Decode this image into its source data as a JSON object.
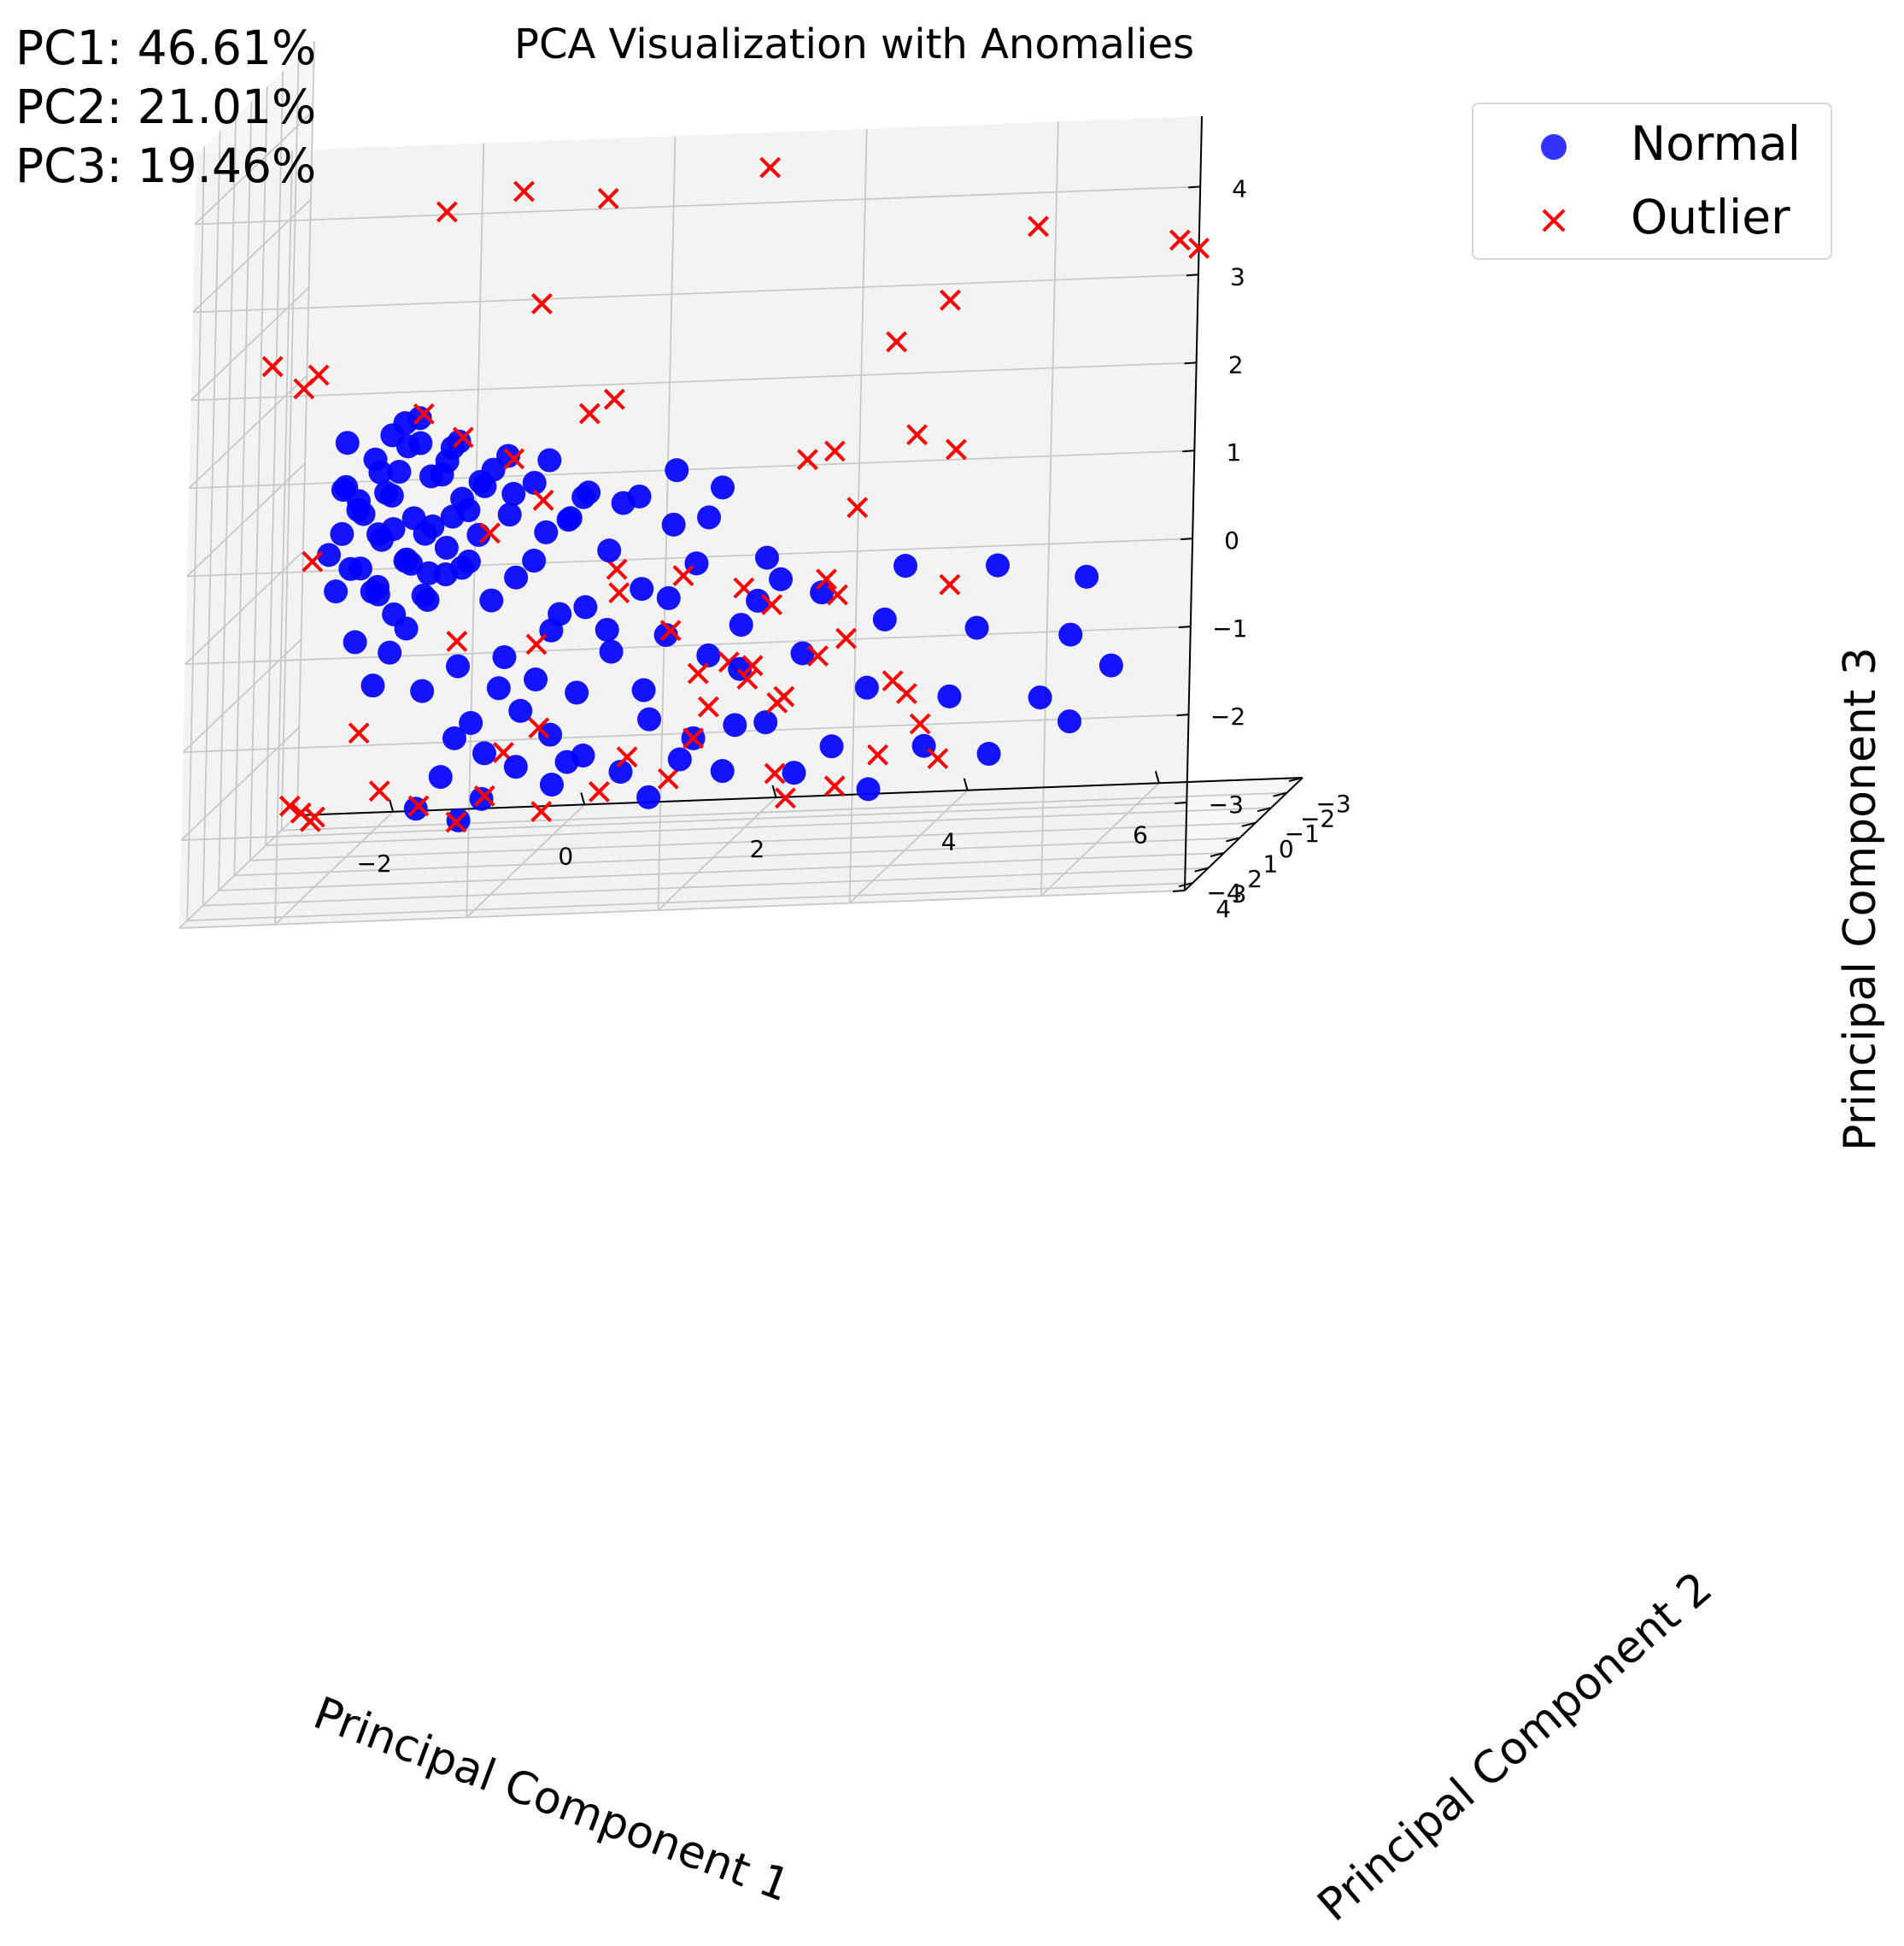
{
  "variance": [
    "PC1: 46.61%",
    "PC2: 21.01%",
    "PC3: 19.46%"
  ],
  "chart_data": {
    "type": "scatter",
    "title": "PCA Visualization with Anomalies",
    "xlabel": "Principal Component 1",
    "ylabel": "Principal Component 2",
    "zlabel": "Principal Component 3",
    "xlim": [
      -3,
      7.5
    ],
    "ylim": [
      -3,
      4.5
    ],
    "zlim": [
      -4,
      4.8
    ],
    "xticks": [
      -2,
      0,
      2,
      4,
      6
    ],
    "yticks": [
      -3,
      -2,
      -1,
      0,
      1,
      2,
      3,
      4
    ],
    "zticks": [
      -4,
      -3,
      -2,
      -1,
      0,
      1,
      2,
      3,
      4
    ],
    "tick_labels": {
      "x": [
        "−2",
        "0",
        "2",
        "4",
        "6"
      ],
      "y": [
        "−3",
        "−2",
        "−1",
        "0",
        "1",
        "2",
        "3",
        "4"
      ],
      "z": [
        "−4",
        "−3",
        "−2",
        "−1",
        "0",
        "1",
        "2",
        "3",
        "4"
      ]
    },
    "grid": true,
    "legend_position": "top-right",
    "series": [
      {
        "name": "Normal",
        "marker": "circle",
        "color": "#0000ff",
        "points": [
          [
            -1.6,
            3.2,
            0.2
          ],
          [
            -1.4,
            3.4,
            0.6
          ],
          [
            -1.2,
            3.1,
            0.1
          ],
          [
            -1.5,
            2.8,
            0.4
          ],
          [
            -1.0,
            3.3,
            0.9
          ],
          [
            -0.9,
            2.9,
            0.3
          ],
          [
            -1.3,
            3.0,
            1.0
          ],
          [
            -1.1,
            3.5,
            0.7
          ],
          [
            -0.8,
            3.2,
            1.2
          ],
          [
            -1.6,
            2.6,
            -0.3
          ],
          [
            -1.2,
            2.5,
            0.5
          ],
          [
            -0.7,
            3.4,
            0.2
          ],
          [
            -1.4,
            2.4,
            -0.6
          ],
          [
            -1.0,
            2.7,
            -0.2
          ],
          [
            -0.6,
            3.0,
            0.8
          ],
          [
            -1.5,
            3.6,
            1.3
          ],
          [
            -0.9,
            3.6,
            1.5
          ],
          [
            -0.5,
            3.3,
            1.0
          ],
          [
            -1.2,
            2.2,
            -0.9
          ],
          [
            -1.6,
            2.2,
            -1.2
          ],
          [
            -0.8,
            2.3,
            0.1
          ],
          [
            -0.4,
            2.9,
            0.5
          ],
          [
            -1.3,
            1.8,
            -1.4
          ],
          [
            -0.9,
            1.9,
            -0.8
          ],
          [
            -1.5,
            1.6,
            -1.8
          ],
          [
            -1.7,
            2.9,
            -0.5
          ],
          [
            -0.6,
            2.6,
            -0.1
          ],
          [
            -1.0,
            3.8,
            1.4
          ],
          [
            -0.7,
            3.9,
            1.6
          ],
          [
            -0.4,
            3.6,
            1.2
          ],
          [
            -0.3,
            3.1,
            0.4
          ],
          [
            -1.1,
            2.0,
            -1.1
          ],
          [
            -0.5,
            2.2,
            -0.4
          ],
          [
            -0.2,
            2.7,
            0.6
          ],
          [
            -1.4,
            3.2,
            -0.2
          ],
          [
            -0.8,
            2.8,
            -0.6
          ],
          [
            -0.9,
            3.4,
            -0.1
          ],
          [
            -0.3,
            3.8,
            1.3
          ],
          [
            0.0,
            3.4,
            0.9
          ],
          [
            -0.6,
            1.7,
            -1.6
          ],
          [
            -1.0,
            1.5,
            -1.9
          ],
          [
            -0.2,
            2.1,
            -0.8
          ],
          [
            0.1,
            2.9,
            0.3
          ],
          [
            -0.5,
            1.4,
            -2.3
          ],
          [
            -0.1,
            1.8,
            -1.5
          ],
          [
            0.3,
            2.5,
            -0.3
          ],
          [
            0.4,
            3.2,
            0.7
          ],
          [
            0.2,
            3.7,
            1.1
          ],
          [
            -0.4,
            1.1,
            -2.7
          ],
          [
            0.0,
            1.3,
            -2.2
          ],
          [
            0.4,
            1.9,
            -1.2
          ],
          [
            0.7,
            2.8,
            0.2
          ],
          [
            0.6,
            3.5,
            1.0
          ],
          [
            0.9,
            3.1,
            0.5
          ],
          [
            -0.9,
            0.8,
            -3.0
          ],
          [
            -0.5,
            0.6,
            -3.3
          ],
          [
            -0.1,
            0.9,
            -2.9
          ],
          [
            0.3,
            1.2,
            -2.5
          ],
          [
            0.8,
            2.2,
            -0.9
          ],
          [
            1.1,
            2.6,
            -0.2
          ],
          [
            1.0,
            3.4,
            0.6
          ],
          [
            1.3,
            3.0,
            0.4
          ],
          [
            -1.2,
            0.5,
            -3.4
          ],
          [
            -0.8,
            0.2,
            -3.6
          ],
          [
            0.2,
            0.4,
            -3.2
          ],
          [
            0.6,
            0.9,
            -2.8
          ],
          [
            1.0,
            1.7,
            -1.5
          ],
          [
            1.4,
            2.3,
            -0.7
          ],
          [
            1.5,
            3.2,
            0.5
          ],
          [
            1.8,
            2.8,
            0.1
          ],
          [
            0.9,
            0.3,
            -3.1
          ],
          [
            1.3,
            1.0,
            -2.4
          ],
          [
            1.6,
            1.9,
            -1.3
          ],
          [
            2.0,
            2.5,
            -0.4
          ],
          [
            2.2,
            3.0,
            0.2
          ],
          [
            1.1,
            -0.3,
            -3.5
          ],
          [
            1.7,
            0.6,
            -2.7
          ],
          [
            2.3,
            1.4,
            -1.8
          ],
          [
            2.6,
            2.2,
            -0.9
          ],
          [
            2.8,
            2.9,
            -0.3
          ],
          [
            1.9,
            -0.1,
            -3.2
          ],
          [
            2.5,
            0.9,
            -2.5
          ],
          [
            3.0,
            1.7,
            -1.6
          ],
          [
            3.3,
            2.4,
            -0.8
          ],
          [
            2.6,
            -0.4,
            -3.3
          ],
          [
            3.1,
            0.3,
            -2.9
          ],
          [
            3.6,
            1.2,
            -2.1
          ],
          [
            3.9,
            2.0,
            -1.2
          ],
          [
            4.2,
            2.6,
            -0.5
          ],
          [
            3.3,
            -0.9,
            -3.6
          ],
          [
            4.0,
            -0.1,
            -3.0
          ],
          [
            4.4,
            0.8,
            -2.3
          ],
          [
            4.8,
            1.6,
            -1.4
          ],
          [
            5.1,
            2.2,
            -0.6
          ],
          [
            4.6,
            -0.6,
            -3.2
          ],
          [
            5.3,
            0.5,
            -2.4
          ],
          [
            5.7,
            1.1,
            -1.6
          ],
          [
            6.0,
            2.0,
            -0.8
          ],
          [
            5.5,
            -0.2,
            -2.8
          ],
          [
            6.1,
            0.9,
            -2.0
          ],
          [
            -1.3,
            3.7,
            0.5
          ],
          [
            -1.1,
            3.9,
            1.0
          ],
          [
            -0.8,
            4.0,
            1.3
          ],
          [
            -1.5,
            3.8,
            0.8
          ],
          [
            -0.6,
            3.7,
            0.9
          ],
          [
            -1.0,
            3.6,
            0.3
          ],
          [
            -1.2,
            3.3,
            -0.4
          ],
          [
            -0.7,
            3.1,
            -0.3
          ],
          [
            -0.4,
            3.5,
            0.4
          ],
          [
            -0.1,
            3.6,
            0.8
          ],
          [
            0.2,
            3.3,
            0.6
          ],
          [
            -0.3,
            3.0,
            -0.2
          ],
          [
            0.5,
            3.0,
            0.1
          ],
          [
            0.8,
            3.3,
            0.3
          ],
          [
            -1.7,
            3.4,
            0.0
          ],
          [
            -1.6,
            3.0,
            0.7
          ],
          [
            -1.3,
            2.7,
            0.1
          ],
          [
            -1.0,
            2.4,
            -0.3
          ],
          [
            -1.4,
            2.0,
            -0.7
          ],
          [
            -0.7,
            2.0,
            -0.5
          ],
          [
            -0.3,
            2.4,
            0.0
          ],
          [
            0.1,
            2.4,
            -0.5
          ],
          [
            0.5,
            2.0,
            -1.0
          ],
          [
            0.2,
            1.6,
            -1.8
          ],
          [
            -0.2,
            1.5,
            -1.9
          ],
          [
            -0.7,
            1.2,
            -2.5
          ],
          [
            0.6,
            1.4,
            -2.0
          ],
          [
            1.0,
            2.0,
            -1.2
          ],
          [
            1.3,
            1.4,
            -2.0
          ],
          [
            1.7,
            2.4,
            -0.8
          ],
          [
            0.4,
            0.7,
            -2.9
          ],
          [
            1.5,
            0.2,
            -3.0
          ],
          [
            2.1,
            0.4,
            -2.6
          ],
          [
            2.0,
            1.6,
            -1.6
          ],
          [
            2.4,
            2.0,
            -1.2
          ],
          [
            2.9,
            2.6,
            -0.6
          ],
          [
            1.9,
            3.3,
            0.8
          ],
          [
            2.4,
            3.4,
            0.6
          ]
        ]
      },
      {
        "name": "Outlier",
        "marker": "x",
        "color": "#ff0000",
        "points": [
          [
            -0.4,
            4.3,
            4.0
          ],
          [
            0.4,
            4.3,
            4.2
          ],
          [
            1.3,
            4.4,
            4.1
          ],
          [
            3.0,
            4.5,
            4.4
          ],
          [
            5.8,
            4.4,
            3.6
          ],
          [
            7.3,
            4.5,
            3.4
          ],
          [
            7.5,
            4.5,
            3.3
          ],
          [
            -2.3,
            3.6,
            2.2
          ],
          [
            -1.8,
            3.7,
            2.1
          ],
          [
            -2.0,
            3.4,
            1.9
          ],
          [
            0.5,
            3.6,
            2.8
          ],
          [
            4.5,
            3.9,
            1.2
          ],
          [
            4.2,
            3.5,
            2.2
          ],
          [
            4.8,
            3.8,
            2.7
          ],
          [
            -0.9,
            2.4,
            1.4
          ],
          [
            -0.5,
            2.3,
            1.1
          ],
          [
            0.1,
            2.7,
            0.9
          ],
          [
            0.4,
            2.6,
            0.4
          ],
          [
            0.8,
            2.2,
            1.3
          ],
          [
            1.2,
            3.1,
            1.6
          ],
          [
            -0.2,
            2.3,
            0.0
          ],
          [
            3.5,
            3.0,
            0.9
          ],
          [
            3.2,
            2.9,
            0.8
          ],
          [
            3.7,
            2.7,
            0.2
          ],
          [
            4.8,
            3.2,
            0.9
          ],
          [
            2.5,
            2.5,
            -0.7
          ],
          [
            2.7,
            1.9,
            -1.0
          ],
          [
            3.2,
            1.5,
            -0.8
          ],
          [
            3.4,
            2.0,
            -0.9
          ],
          [
            1.2,
            2.7,
            -0.4
          ],
          [
            1.8,
            2.1,
            -0.6
          ],
          [
            1.1,
            1.9,
            -0.8
          ],
          [
            1.6,
            1.6,
            -1.3
          ],
          [
            2.2,
            1.5,
            -1.7
          ],
          [
            2.4,
            1.2,
            -1.8
          ],
          [
            3.5,
            2.0,
            -1.4
          ],
          [
            4.7,
            2.8,
            -0.7
          ],
          [
            1.9,
            0.9,
            -2.3
          ],
          [
            0.1,
            0.7,
            -2.5
          ],
          [
            2.3,
            0.9,
            -2.0
          ],
          [
            2.8,
            1.6,
            -2.1
          ],
          [
            -0.6,
            1.8,
            -1.3
          ],
          [
            -2.0,
            2.6,
            -0.2
          ],
          [
            -1.7,
            1.2,
            -2.4
          ],
          [
            -1.6,
            0.4,
            -3.2
          ],
          [
            -2.5,
            0.6,
            -3.3
          ],
          [
            -2.4,
            0.5,
            -3.4
          ],
          [
            -2.3,
            0.5,
            -3.5
          ],
          [
            3.0,
            0.7,
            -1.8
          ],
          [
            2.6,
            0.8,
            -2.3
          ],
          [
            4.0,
            1.1,
            -2.2
          ],
          [
            4.1,
            0.8,
            -2.6
          ],
          [
            3.6,
            0.4,
            -3.0
          ],
          [
            -0.2,
            1.1,
            -2.7
          ],
          [
            0.9,
            -0.1,
            -3.0
          ],
          [
            1.4,
            0.3,
            -3.2
          ],
          [
            -0.5,
            0.4,
            -3.3
          ],
          [
            -2.4,
            -0.4,
            -3.6
          ],
          [
            -1.3,
            -0.3,
            -3.5
          ],
          [
            0.0,
            -0.2,
            -3.6
          ],
          [
            0.6,
            -0.2,
            -3.4
          ],
          [
            -1.0,
            -0.9,
            -3.8
          ],
          [
            2.4,
            -0.4,
            -3.3
          ],
          [
            2.5,
            -0.5,
            -3.6
          ],
          [
            2.9,
            -1.2,
            -3.6
          ],
          [
            4.1,
            -0.4,
            -3.2
          ],
          [
            1.7,
            0.6,
            -2.7
          ],
          [
            0.2,
            1.6,
            -1.4
          ],
          [
            1.8,
            1.0,
            -1.9
          ],
          [
            3.9,
            1.4,
            -2.0
          ]
        ]
      }
    ]
  }
}
